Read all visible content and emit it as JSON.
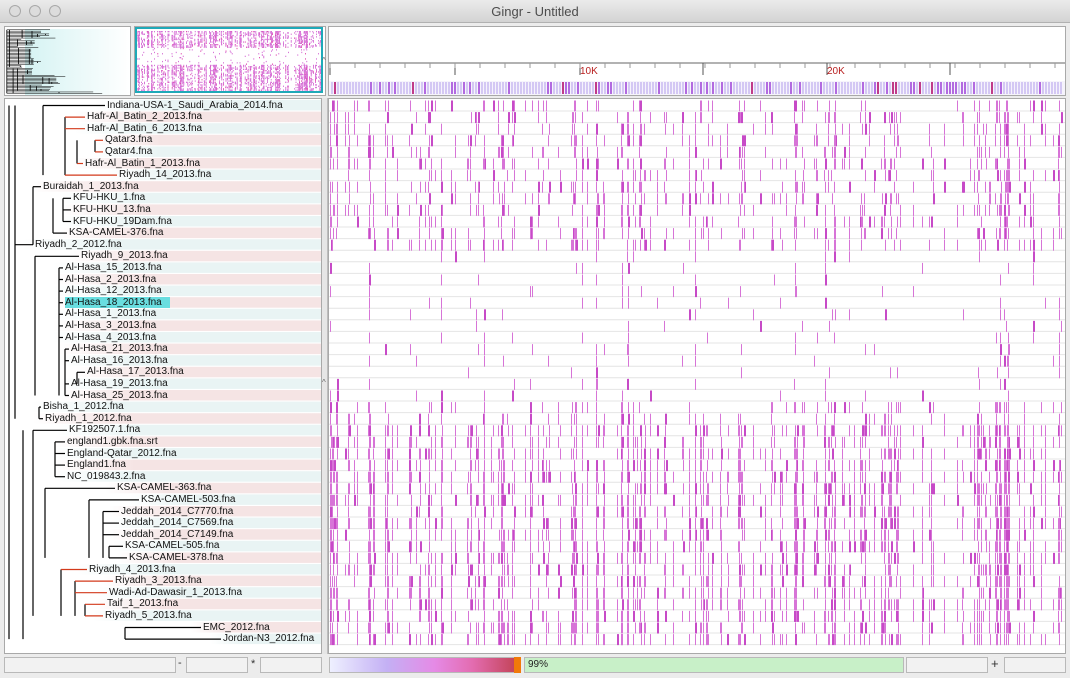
{
  "window": {
    "title": "Gingr - Untitled",
    "buttons": [
      "close",
      "minimize",
      "zoom"
    ]
  },
  "colors": {
    "row_stripe_a": "#e9f4f4",
    "row_stripe_b": "#f5e4e4",
    "snp": "#d774d7",
    "snp_strong": "#c74ac7",
    "selection": "#69dee0",
    "overview_border": "#1fa9b8",
    "tick_label": "#b81f1f",
    "zoom_bar": "#c8f0c8",
    "branch": "#000000",
    "branch_highlight": "#d33a1b"
  },
  "ruler": {
    "labels": [
      "10K",
      "20K"
    ]
  },
  "taxa": [
    "Indiana-USA-1_Saudi_Arabia_2014.fna",
    "Hafr-Al_Batin_2_2013.fna",
    "Hafr-Al_Batin_6_2013.fna",
    "Qatar3.fna",
    "Qatar4.fna",
    "Hafr-Al_Batin_1_2013.fna",
    "Riyadh_14_2013.fna",
    "Buraidah_1_2013.fna",
    "KFU-HKU_1.fna",
    "KFU-HKU_13.fna",
    "KFU-HKU_19Dam.fna",
    "KSA-CAMEL-376.fna",
    "Riyadh_2_2012.fna",
    "Riyadh_9_2013.fna",
    "Al-Hasa_15_2013.fna",
    "Al-Hasa_2_2013.fna",
    "Al-Hasa_12_2013.fna",
    "Al-Hasa_18_2013.fna",
    "Al-Hasa_1_2013.fna",
    "Al-Hasa_3_2013.fna",
    "Al-Hasa_4_2013.fna",
    "Al-Hasa_21_2013.fna",
    "Al-Hasa_16_2013.fna",
    "Al-Hasa_17_2013.fna",
    "Al-Hasa_19_2013.fna",
    "Al-Hasa_25_2013.fna",
    "Bisha_1_2012.fna",
    "Riyadh_1_2012.fna",
    "KF192507.1.fna",
    "england1.gbk.fna.srt",
    "England-Qatar_2012.fna",
    "England1.fna",
    "NC_019843.2.fna",
    "KSA-CAMEL-363.fna",
    "KSA-CAMEL-503.fna",
    "Jeddah_2014_C7770.fna",
    "Jeddah_2014_C7569.fna",
    "Jeddah_2014_C7149.fna",
    "KSA-CAMEL-505.fna",
    "KSA-CAMEL-378.fna",
    "Riyadh_4_2013.fna",
    "Riyadh_3_2013.fna",
    "Wadi-Ad-Dawasir_1_2013.fna",
    "Taif_1_2013.fna",
    "Riyadh_5_2013.fna",
    "EMC_2012.fna",
    "Jordan-N3_2012.fna"
  ],
  "selected_taxon": "Al-Hasa_18_2013.fna",
  "statusbar": {
    "zoom_percent": "99%",
    "minus": "-",
    "star": "*",
    "plus": "+"
  }
}
